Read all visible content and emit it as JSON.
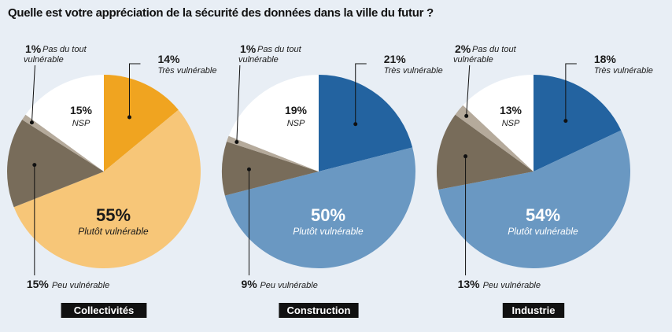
{
  "title": "Quelle est votre appréciation de la sécurité des données dans la ville du futur ?",
  "chart_data": [
    {
      "type": "pie",
      "category": "Collectivités",
      "slices": [
        {
          "pct": "14%",
          "value": 14,
          "label": "Très vulnérable",
          "color": "#f0a420"
        },
        {
          "pct": "55%",
          "value": 55,
          "label": "Plutôt vulnérable",
          "color": "#f7c678"
        },
        {
          "pct": "15%",
          "value": 15,
          "label": "Peu vulnérable",
          "color": "#786c5a"
        },
        {
          "pct": "1%",
          "value": 1,
          "label": "Pas du tout vulnérable",
          "color": "#b5aa9b"
        },
        {
          "pct": "15%",
          "value": 15,
          "label": "NSP",
          "color": "#ffffff"
        }
      ]
    },
    {
      "type": "pie",
      "category": "Construction",
      "slices": [
        {
          "pct": "21%",
          "value": 21,
          "label": "Très vulnérable",
          "color": "#2363a0"
        },
        {
          "pct": "50%",
          "value": 50,
          "label": "Plutôt vulnérable",
          "color": "#6a98c2"
        },
        {
          "pct": "9%",
          "value": 9,
          "label": "Peu vulnérable",
          "color": "#786c5a"
        },
        {
          "pct": "1%",
          "value": 1,
          "label": "Pas du tout vulnérable",
          "color": "#b5aa9b"
        },
        {
          "pct": "19%",
          "value": 19,
          "label": "NSP",
          "color": "#ffffff"
        }
      ]
    },
    {
      "type": "pie",
      "category": "Industrie",
      "slices": [
        {
          "pct": "18%",
          "value": 18,
          "label": "Très vulnérable",
          "color": "#2363a0"
        },
        {
          "pct": "54%",
          "value": 54,
          "label": "Plutôt vulnérable",
          "color": "#6a98c2"
        },
        {
          "pct": "13%",
          "value": 13,
          "label": "Peu vulnérable",
          "color": "#786c5a"
        },
        {
          "pct": "2%",
          "value": 2,
          "label": "Pas du tout vulnérable",
          "color": "#b5aa9b"
        },
        {
          "pct": "13%",
          "value": 13,
          "label": "NSP",
          "color": "#ffffff"
        }
      ]
    }
  ]
}
